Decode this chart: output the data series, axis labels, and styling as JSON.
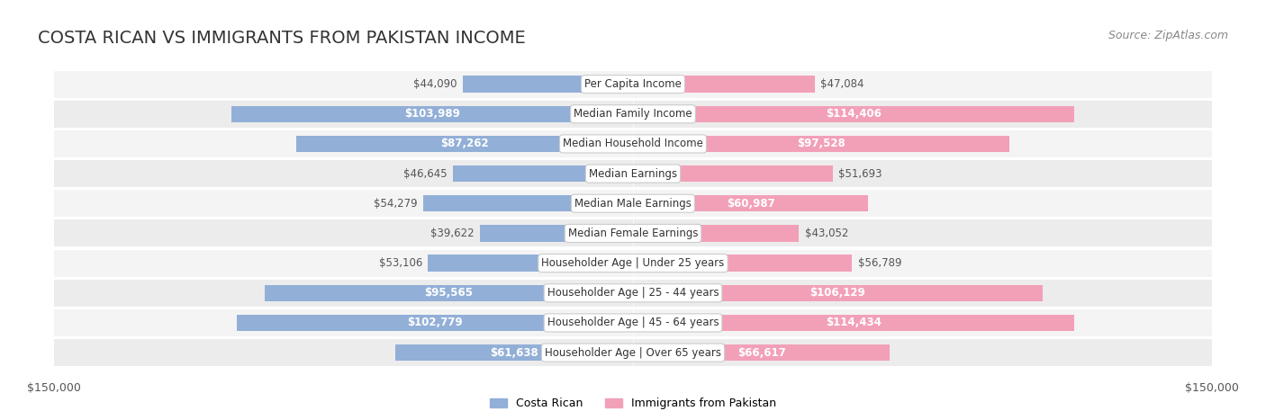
{
  "title": "COSTA RICAN VS IMMIGRANTS FROM PAKISTAN INCOME",
  "source": "Source: ZipAtlas.com",
  "categories": [
    "Per Capita Income",
    "Median Family Income",
    "Median Household Income",
    "Median Earnings",
    "Median Male Earnings",
    "Median Female Earnings",
    "Householder Age | Under 25 years",
    "Householder Age | 25 - 44 years",
    "Householder Age | 45 - 64 years",
    "Householder Age | Over 65 years"
  ],
  "costa_rican": [
    44090,
    103989,
    87262,
    46645,
    54279,
    39622,
    53106,
    95565,
    102779,
    61638
  ],
  "pakistan": [
    47084,
    114406,
    97528,
    51693,
    60987,
    43052,
    56789,
    106129,
    114434,
    66617
  ],
  "max_val": 150000,
  "blue_color": "#92afd7",
  "pink_color": "#f2a0b8",
  "blue_label_color": "#6b8cba",
  "pink_label_color": "#e8799a",
  "bar_bg_color": "#f0f0f0",
  "row_bg_even": "#f7f7f7",
  "row_bg_odd": "#eeeeee",
  "label_box_color": "#ffffff",
  "label_box_edge": "#cccccc",
  "title_fontsize": 14,
  "source_fontsize": 9,
  "bar_label_fontsize": 8.5,
  "category_fontsize": 8.5,
  "axis_label_fontsize": 9,
  "legend_fontsize": 9,
  "blue_legend": "Costa Rican",
  "pink_legend": "Immigrants from Pakistan"
}
